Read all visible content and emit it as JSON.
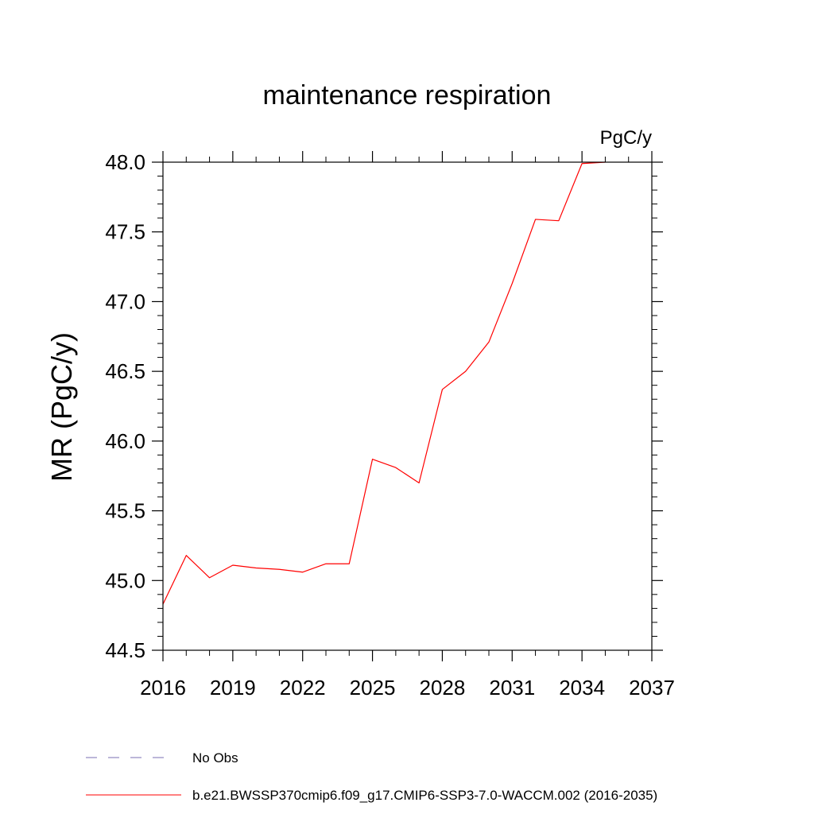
{
  "chart_data": {
    "type": "line",
    "title": "maintenance respiration",
    "units_label": "PgC/y",
    "xlabel": "",
    "ylabel": "MR  (PgC/y)",
    "xlim": [
      2016,
      2037
    ],
    "ylim": [
      44.5,
      48.0
    ],
    "x_ticks": [
      2016,
      2019,
      2022,
      2025,
      2028,
      2031,
      2034,
      2037
    ],
    "x_tick_labels": [
      "2016",
      "2019",
      "2022",
      "2025",
      "2028",
      "2031",
      "2034",
      "2037"
    ],
    "y_ticks": [
      44.5,
      45.0,
      45.5,
      46.0,
      46.5,
      47.0,
      47.5,
      48.0
    ],
    "y_tick_labels": [
      "44.5",
      "45.0",
      "45.5",
      "46.0",
      "46.5",
      "47.0",
      "47.5",
      "48.0"
    ],
    "grid": false,
    "series": [
      {
        "name": "b.e21.BWSSP370cmip6.f09_g17.CMIP6-SSP3-7.0-WACCM.002 (2016-2035)",
        "color": "#ff0000",
        "style": "solid",
        "x": [
          2016,
          2017,
          2018,
          2019,
          2020,
          2021,
          2022,
          2023,
          2024,
          2025,
          2026,
          2027,
          2028,
          2029,
          2030,
          2031,
          2032,
          2033,
          2034,
          2035
        ],
        "values": [
          44.83,
          45.18,
          45.02,
          45.11,
          45.09,
          45.08,
          45.06,
          45.12,
          45.12,
          45.87,
          45.81,
          45.7,
          46.37,
          46.5,
          46.71,
          47.13,
          47.59,
          47.58,
          47.99,
          48.0
        ]
      }
    ],
    "legend": {
      "position": "bottom-left",
      "entries": [
        {
          "label": "No Obs",
          "color": "#7a6fb3",
          "style": "dashed"
        },
        {
          "label": "b.e21.BWSSP370cmip6.f09_g17.CMIP6-SSP3-7.0-WACCM.002 (2016-2035)",
          "color": "#ff0000",
          "style": "solid"
        }
      ]
    }
  }
}
